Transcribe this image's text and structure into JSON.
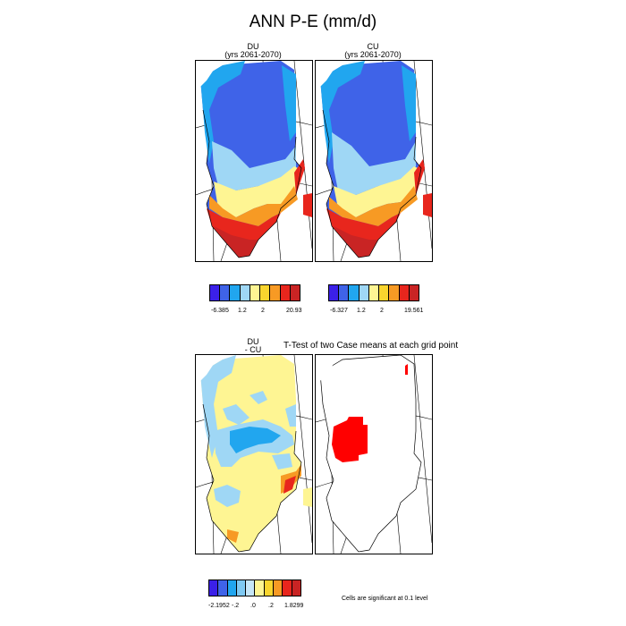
{
  "figure_title": "ANN P-E (mm/d)",
  "panels": {
    "du": {
      "line1": "DU",
      "line2": "(yrs 2061-2070)"
    },
    "cu": {
      "line1": "CU",
      "line2": "(yrs 2061-2070)"
    },
    "diff": {
      "line1": "DU",
      "line2": "- CU"
    },
    "ttest": {
      "title": "T-Test of two Case means at each grid point"
    }
  },
  "colorbars": {
    "du": {
      "colors": [
        "#3b20e8",
        "#3f63e8",
        "#21a6ef",
        "#9fd7f5",
        "#fef593",
        "#f9d52e",
        "#f79a24",
        "#e8261d",
        "#c92424"
      ],
      "ticks": [
        "-6.385",
        "1.2",
        "2",
        "20.93"
      ]
    },
    "cu": {
      "colors": [
        "#3b20e8",
        "#3f63e8",
        "#21a6ef",
        "#9fd7f5",
        "#fef593",
        "#f9d52e",
        "#f79a24",
        "#e8261d",
        "#c92424"
      ],
      "ticks": [
        "-6.327",
        "1.2",
        "2",
        "19.561"
      ]
    },
    "diff": {
      "colors": [
        "#3b20e8",
        "#3f63e8",
        "#21a6ef",
        "#7fc9f2",
        "#c6e6f8",
        "#fef593",
        "#f9d52e",
        "#f79a24",
        "#e8261d",
        "#c92424"
      ],
      "ticks": [
        "-2.1952",
        "-.2",
        ".0",
        ".2",
        "1.8299"
      ]
    }
  },
  "significance_note": "Cells are significant at 0.1 level",
  "colors": {
    "deep_blue": "#3f63e8",
    "blue": "#21a6ef",
    "light_blue": "#9fd7f5",
    "yellow": "#fef593",
    "orange": "#f79a24",
    "red": "#e8261d",
    "dark_red": "#c92424",
    "sig_red": "#ff0000"
  }
}
